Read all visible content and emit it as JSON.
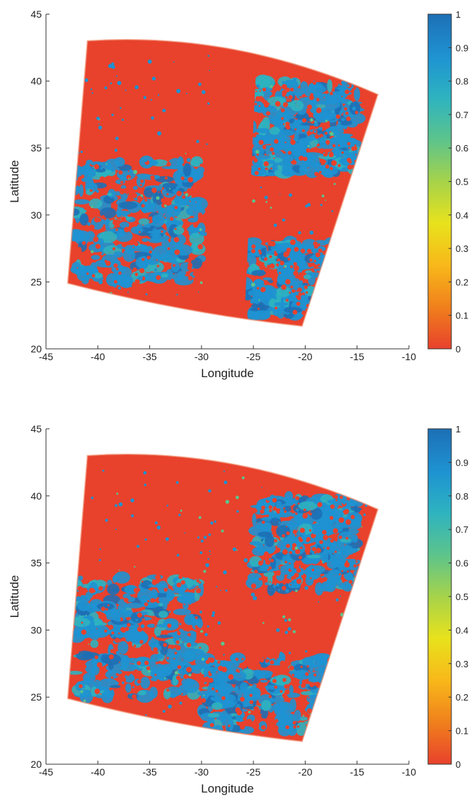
{
  "chart_data": [
    {
      "type": "heatmap",
      "xlabel": "Longitude",
      "ylabel": "Latitude",
      "xlim": [
        -45,
        -10
      ],
      "ylim": [
        20,
        45
      ],
      "xticks": [
        -45,
        -40,
        -35,
        -30,
        -25,
        -20,
        -15,
        -10
      ],
      "yticks": [
        20,
        25,
        30,
        35,
        40,
        45
      ],
      "colorbar": {
        "range": [
          0,
          1
        ],
        "ticks": [
          0,
          0.1,
          0.2,
          0.3,
          0.4,
          0.5,
          0.6,
          0.7,
          0.8,
          0.9,
          1
        ],
        "colors": [
          "#e8412c",
          "#f0801c",
          "#f8b81a",
          "#e8e21c",
          "#a6d34a",
          "#5cc48c",
          "#2eb3c0",
          "#1e92d2",
          "#1d6fb5"
        ]
      },
      "swath_corners": [
        [
          -41,
          43
        ],
        [
          -13,
          39
        ],
        [
          -20.3,
          21.7
        ],
        [
          -42.9,
          24.9
        ]
      ],
      "low_value_bands": [
        {
          "lon_center_top": -26.5,
          "lon_center_bottom": -28,
          "width_deg": 4
        }
      ],
      "high_value_regions": [
        {
          "lon": [
            -42.5,
            -30
          ],
          "lat": [
            25,
            34
          ]
        },
        {
          "lon": [
            -26,
            -15
          ],
          "lat": [
            22.5,
            28
          ]
        },
        {
          "lon": [
            -25,
            -15
          ],
          "lat": [
            33,
            40
          ]
        }
      ]
    },
    {
      "type": "heatmap",
      "xlabel": "Longitude",
      "ylabel": "Latitude",
      "xlim": [
        -45,
        -10
      ],
      "ylim": [
        20,
        45
      ],
      "xticks": [
        -45,
        -40,
        -35,
        -30,
        -25,
        -20,
        -15,
        -10
      ],
      "yticks": [
        20,
        25,
        30,
        35,
        40,
        45
      ],
      "colorbar": {
        "range": [
          0,
          1
        ],
        "ticks": [
          0,
          0.1,
          0.2,
          0.3,
          0.4,
          0.5,
          0.6,
          0.7,
          0.8,
          0.9,
          1
        ],
        "colors": [
          "#e8412c",
          "#f0801c",
          "#f8b81a",
          "#e8e21c",
          "#a6d34a",
          "#5cc48c",
          "#2eb3c0",
          "#1e92d2",
          "#1d6fb5"
        ]
      },
      "swath_corners": [
        [
          -41,
          43
        ],
        [
          -13,
          39
        ],
        [
          -20.3,
          21.7
        ],
        [
          -42.9,
          24.9
        ]
      ],
      "low_value_bands": [],
      "high_value_regions": [
        {
          "lon": [
            -42.5,
            -30
          ],
          "lat": [
            25,
            34
          ]
        },
        {
          "lon": [
            -30,
            -15
          ],
          "lat": [
            22.5,
            28
          ]
        },
        {
          "lon": [
            -25,
            -15
          ],
          "lat": [
            33,
            40
          ]
        }
      ]
    }
  ]
}
